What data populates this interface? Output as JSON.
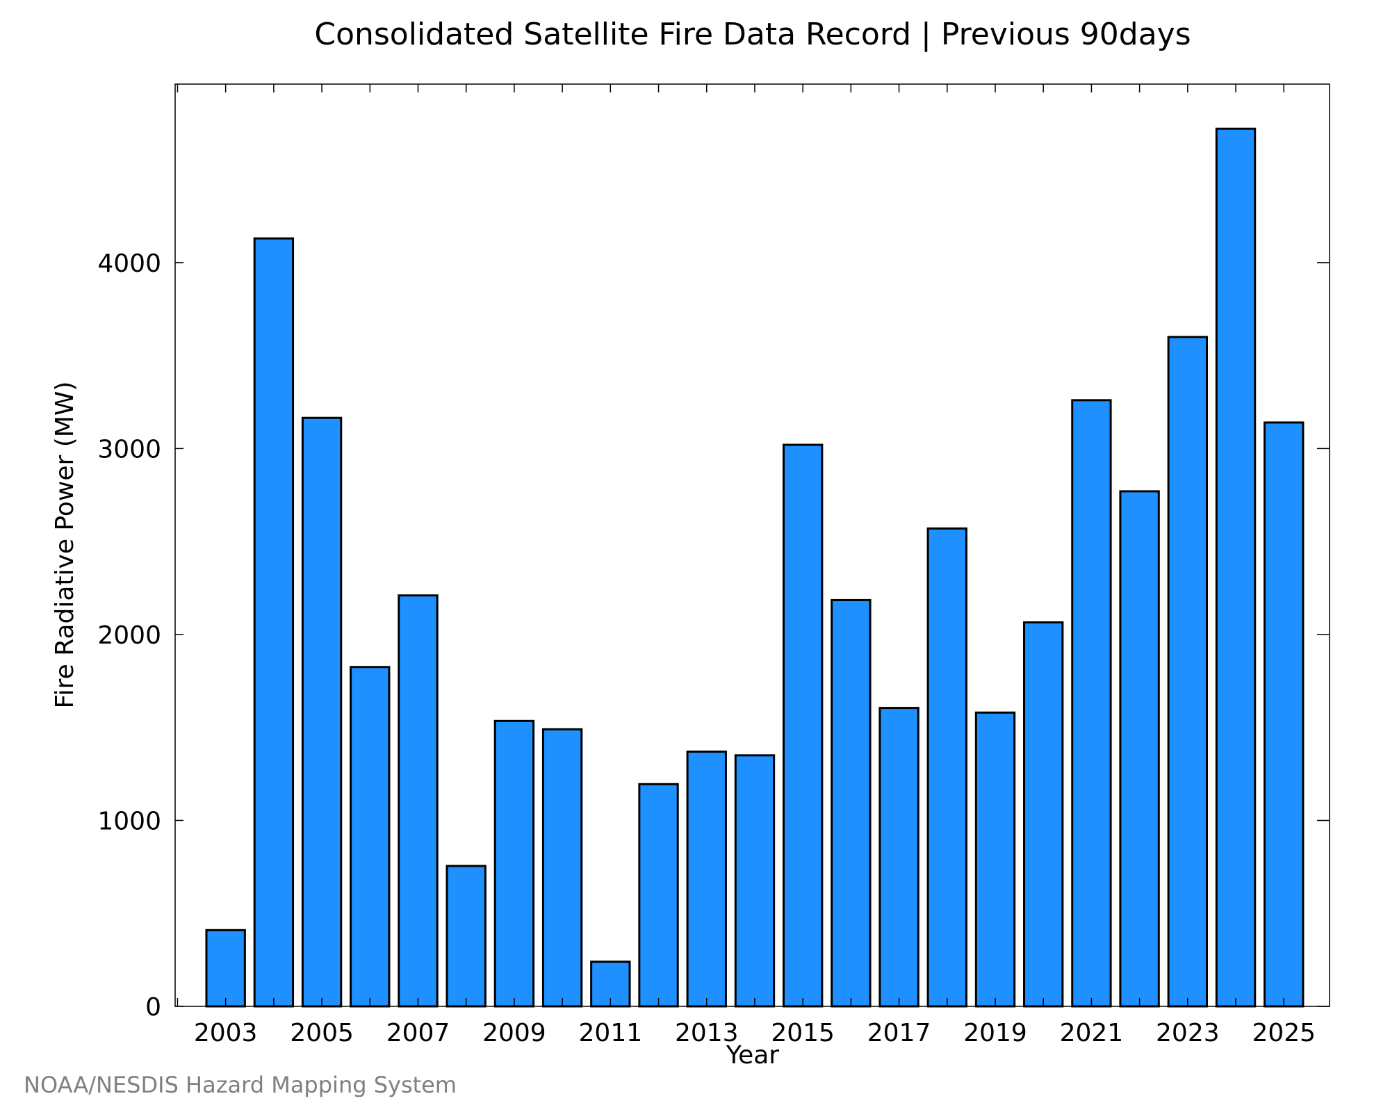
{
  "chart_data": {
    "type": "bar",
    "title": "Consolidated Satellite Fire Data Record | Previous 90days",
    "xlabel": "Year",
    "ylabel": "Fire Radiative Power (MW)",
    "categories": [
      2003,
      2004,
      2005,
      2006,
      2007,
      2008,
      2009,
      2010,
      2011,
      2012,
      2013,
      2014,
      2015,
      2016,
      2017,
      2018,
      2019,
      2020,
      2021,
      2022,
      2023,
      2024,
      2025
    ],
    "values": [
      410,
      4130,
      3165,
      1825,
      2210,
      755,
      1535,
      1490,
      240,
      1195,
      1370,
      1350,
      3020,
      2185,
      1605,
      2570,
      1580,
      2065,
      3260,
      2770,
      3600,
      4720,
      3140
    ],
    "xticks": [
      "2003",
      "2005",
      "2007",
      "2009",
      "2011",
      "2013",
      "2015",
      "2017",
      "2019",
      "2021",
      "2023",
      "2025"
    ],
    "yticks": [
      0,
      1000,
      2000,
      3000,
      4000
    ],
    "ylim": [
      0,
      4960
    ],
    "xlim": [
      2001.95,
      2025.95
    ],
    "grid": false,
    "legend": "none",
    "bar_color": "#1E90FF",
    "bar_edge_color": "#000000",
    "credit": "NOAA/NESDIS Hazard Mapping System"
  }
}
